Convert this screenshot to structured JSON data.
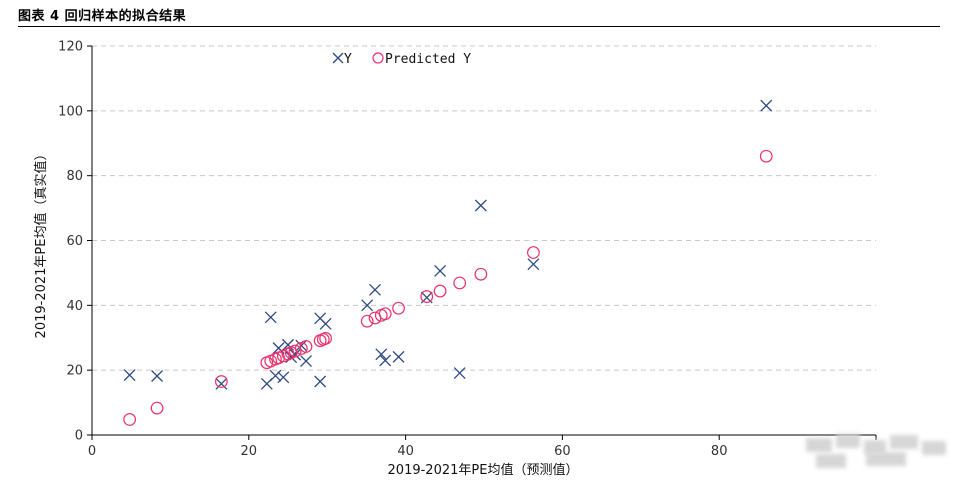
{
  "figure": {
    "title": "图表 4 回归样本的拟合结果"
  },
  "chart_data": {
    "type": "scatter",
    "xlabel": "2019-2021年PE均值（预测值）",
    "ylabel": "2019-2021年PE均值（真实值）",
    "xlim": [
      0,
      100
    ],
    "ylim": [
      0,
      120
    ],
    "x_ticks": [
      0,
      20,
      40,
      60,
      80
    ],
    "y_ticks": [
      0,
      20,
      40,
      60,
      80,
      100,
      120
    ],
    "grid": "horizontal dashed",
    "legend_position": "top-center",
    "series": [
      {
        "name": "Y",
        "marker": "x",
        "color": "#2e4a82",
        "points": [
          [
            4.8,
            18.5
          ],
          [
            8.3,
            18.2
          ],
          [
            16.5,
            15.8
          ],
          [
            22.3,
            15.8
          ],
          [
            22.8,
            36.3
          ],
          [
            23.4,
            18.3
          ],
          [
            23.8,
            26.8
          ],
          [
            24.4,
            17.8
          ],
          [
            25.0,
            27.8
          ],
          [
            25.4,
            24.0
          ],
          [
            25.9,
            24.8
          ],
          [
            26.7,
            27.6
          ],
          [
            27.3,
            22.8
          ],
          [
            29.1,
            36.0
          ],
          [
            29.1,
            16.5
          ],
          [
            29.8,
            34.3
          ],
          [
            35.1,
            40.0
          ],
          [
            36.1,
            44.8
          ],
          [
            36.9,
            24.9
          ],
          [
            37.4,
            23.0
          ],
          [
            39.1,
            24.1
          ],
          [
            42.7,
            42.4
          ],
          [
            44.4,
            50.6
          ],
          [
            46.9,
            19.1
          ],
          [
            49.6,
            70.8
          ],
          [
            56.3,
            52.7
          ],
          [
            86.0,
            101.6
          ]
        ]
      },
      {
        "name": "Predicted Y",
        "marker": "o",
        "color": "#e8336c",
        "points": [
          [
            4.8,
            4.8
          ],
          [
            8.3,
            8.3
          ],
          [
            16.5,
            16.5
          ],
          [
            22.3,
            22.3
          ],
          [
            22.8,
            22.8
          ],
          [
            23.4,
            23.4
          ],
          [
            23.8,
            23.8
          ],
          [
            24.4,
            24.4
          ],
          [
            25.0,
            25.0
          ],
          [
            25.4,
            25.4
          ],
          [
            25.9,
            25.9
          ],
          [
            26.7,
            26.7
          ],
          [
            27.3,
            27.3
          ],
          [
            29.1,
            29.1
          ],
          [
            29.5,
            29.5
          ],
          [
            29.8,
            29.8
          ],
          [
            35.1,
            35.1
          ],
          [
            36.1,
            36.1
          ],
          [
            36.9,
            36.9
          ],
          [
            37.4,
            37.4
          ],
          [
            39.1,
            39.1
          ],
          [
            42.7,
            42.7
          ],
          [
            44.4,
            44.4
          ],
          [
            46.9,
            46.9
          ],
          [
            49.6,
            49.6
          ],
          [
            56.3,
            56.3
          ],
          [
            86.0,
            86.0
          ]
        ]
      }
    ]
  }
}
